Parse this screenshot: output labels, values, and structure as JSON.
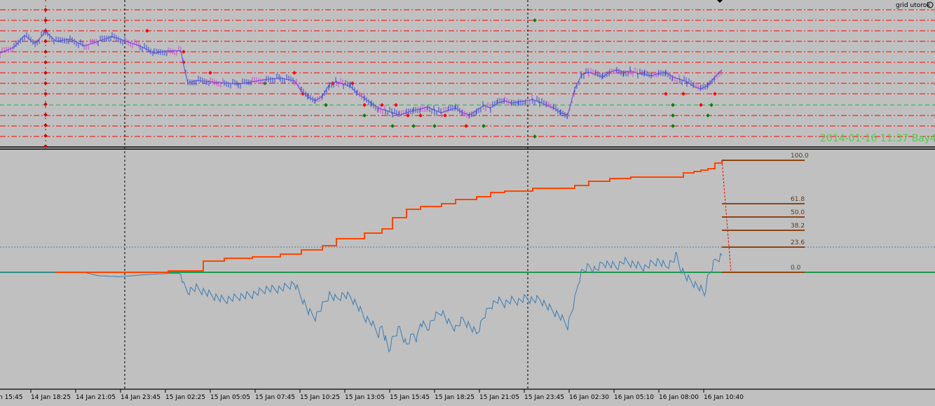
{
  "indicator_label": "grid utorok",
  "watermark": "2014-01-16 11:37 Bay4",
  "time_axis": {
    "labels": [
      "n 15:45",
      "14 Jan 18:25",
      "14 Jan 21:05",
      "14 Jan 23:45",
      "15 Jan 02:25",
      "15 Jan 05:05",
      "15 Jan 07:45",
      "15 Jan 10:25",
      "15 Jan 13:05",
      "15 Jan 15:45",
      "15 Jan 18:25",
      "15 Jan 21:05",
      "15 Jan 23:45",
      "16 Jan 02:30",
      "16 Jan 05:10",
      "16 Jan 08:00",
      "16 Jan 10:40"
    ]
  },
  "fibonacci_levels": [
    "100.0",
    "61.8",
    "50.0",
    "38.2",
    "23.6",
    "0.0"
  ],
  "colors": {
    "background": "#c0c0c0",
    "price_up": "#3a4ad0",
    "price_down": "#d04ad0",
    "grid_line": "#ff0000",
    "buy_marker": "#ff0000",
    "sell_marker": "#008000",
    "equity": "#ff4500",
    "balance": "#4682b4",
    "zero_line": "#1a9a50",
    "fib_line": "#8b4513",
    "watermark": "#4cd04c"
  },
  "chart_data": [
    {
      "type": "line",
      "name": "price",
      "x_range": [
        0,
        1030
      ],
      "y_range": [
        0,
        100
      ],
      "x": [
        0,
        20,
        35,
        50,
        65,
        80,
        100,
        120,
        140,
        160,
        180,
        200,
        220,
        240,
        258,
        262,
        268,
        280,
        300,
        320,
        340,
        360,
        380,
        400,
        420,
        430,
        440,
        450,
        460,
        470,
        480,
        490,
        500,
        510,
        520,
        530,
        540,
        550,
        560,
        570,
        580,
        590,
        600,
        610,
        620,
        630,
        640,
        650,
        660,
        670,
        680,
        690,
        700,
        710,
        720,
        730,
        740,
        750,
        760,
        770,
        780,
        790,
        800,
        810,
        820,
        830,
        840,
        850,
        860,
        870,
        880,
        890,
        900,
        910,
        920,
        930,
        940,
        950,
        960,
        970,
        980,
        990,
        1000,
        1010,
        1020,
        1030
      ],
      "y": [
        70,
        75,
        85,
        78,
        88,
        80,
        82,
        76,
        80,
        84,
        80,
        76,
        70,
        72,
        72,
        60,
        45,
        47,
        46,
        45,
        44,
        46,
        48,
        49,
        47,
        38,
        33,
        30,
        34,
        44,
        46,
        44,
        42,
        36,
        32,
        28,
        24,
        22,
        20,
        18,
        20,
        22,
        23,
        25,
        22,
        20,
        22,
        24,
        20,
        18,
        22,
        26,
        24,
        28,
        30,
        28,
        29,
        30,
        31,
        29,
        26,
        24,
        20,
        18,
        40,
        52,
        54,
        52,
        50,
        54,
        56,
        54,
        55,
        53,
        52,
        51,
        53,
        54,
        50,
        48,
        46,
        42,
        40,
        43,
        50,
        56
      ]
    },
    {
      "type": "line",
      "name": "equity",
      "x_range": [
        0,
        1030
      ],
      "y_range": [
        0,
        100
      ],
      "x": [
        80,
        130,
        170,
        210,
        240,
        262,
        290,
        320,
        360,
        400,
        430,
        460,
        480,
        520,
        545,
        560,
        580,
        600,
        630,
        650,
        680,
        700,
        720,
        760,
        800,
        820,
        840,
        870,
        900,
        940,
        965,
        975,
        990,
        1000,
        1010,
        1020,
        1030
      ],
      "y": [
        0,
        0,
        0,
        0,
        1,
        1,
        8,
        10,
        11,
        13,
        16,
        19,
        24,
        28,
        31,
        39,
        45,
        47,
        49,
        52,
        54,
        57,
        58,
        60,
        60,
        62,
        65,
        67,
        68,
        68,
        68,
        71,
        72,
        73,
        74,
        78,
        80
      ]
    },
    {
      "type": "line",
      "name": "balance",
      "x_range": [
        0,
        1030
      ],
      "y_range": [
        -100,
        100
      ],
      "x": [
        0,
        80,
        120,
        140,
        170,
        210,
        240,
        258,
        262,
        268,
        280,
        300,
        320,
        340,
        360,
        380,
        400,
        420,
        430,
        440,
        450,
        460,
        470,
        480,
        490,
        500,
        510,
        520,
        530,
        540,
        545,
        550,
        555,
        560,
        570,
        580,
        590,
        595,
        600,
        610,
        620,
        630,
        640,
        650,
        660,
        670,
        680,
        690,
        700,
        710,
        720,
        730,
        740,
        750,
        760,
        770,
        780,
        790,
        800,
        810,
        820,
        825,
        830,
        840,
        850,
        860,
        870,
        880,
        890,
        900,
        910,
        920,
        930,
        940,
        950,
        960,
        965,
        970,
        980,
        990,
        1000,
        1005,
        1010,
        1020,
        1030
      ],
      "y": [
        0,
        0,
        0,
        -3,
        -4,
        -2,
        -1,
        -1,
        -12,
        -17,
        -14,
        -20,
        -25,
        -22,
        -20,
        -15,
        -15,
        -10,
        -22,
        -35,
        -40,
        -30,
        -20,
        -24,
        -20,
        -22,
        -30,
        -40,
        -45,
        -55,
        -48,
        -60,
        -70,
        -60,
        -50,
        -65,
        -55,
        -60,
        -45,
        -50,
        -40,
        -35,
        -45,
        -50,
        -42,
        -48,
        -55,
        -40,
        -30,
        -25,
        -28,
        -25,
        -26,
        -23,
        -25,
        -24,
        -30,
        -35,
        -40,
        -48,
        -25,
        -10,
        0,
        5,
        2,
        8,
        7,
        5,
        10,
        8,
        6,
        4,
        8,
        10,
        5,
        10,
        15,
        5,
        -5,
        -10,
        -15,
        -20,
        -5,
        10,
        15
      ]
    }
  ]
}
